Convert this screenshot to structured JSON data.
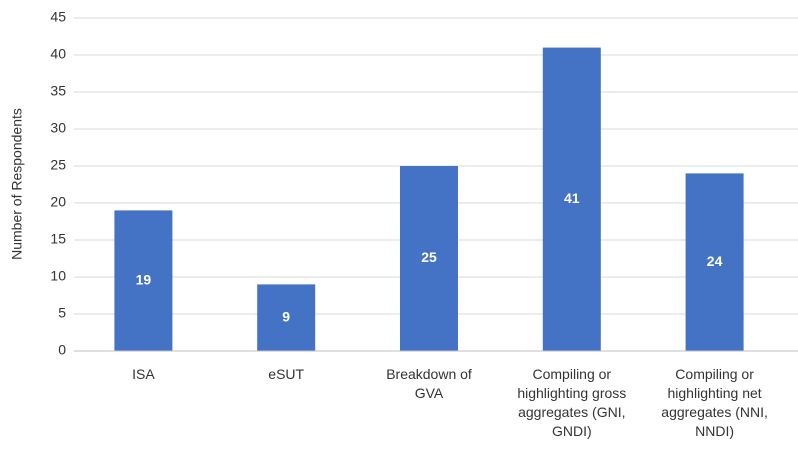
{
  "chart_data": {
    "type": "bar",
    "y_label": "Number of Respondents",
    "categories": [
      "ISA",
      "eSUT",
      "Breakdown of GVA",
      "Compiling or highlighting gross aggregates (GNI, GNDI)",
      "Compiling or highlighting net aggregates (NNI, NNDI)"
    ],
    "values": [
      19,
      9,
      25,
      41,
      24
    ],
    "color": "#4472c4",
    "ylim": [
      0,
      45
    ],
    "yticks": [
      0,
      5,
      10,
      15,
      20,
      25,
      30,
      35,
      40,
      45
    ],
    "grid": true
  }
}
